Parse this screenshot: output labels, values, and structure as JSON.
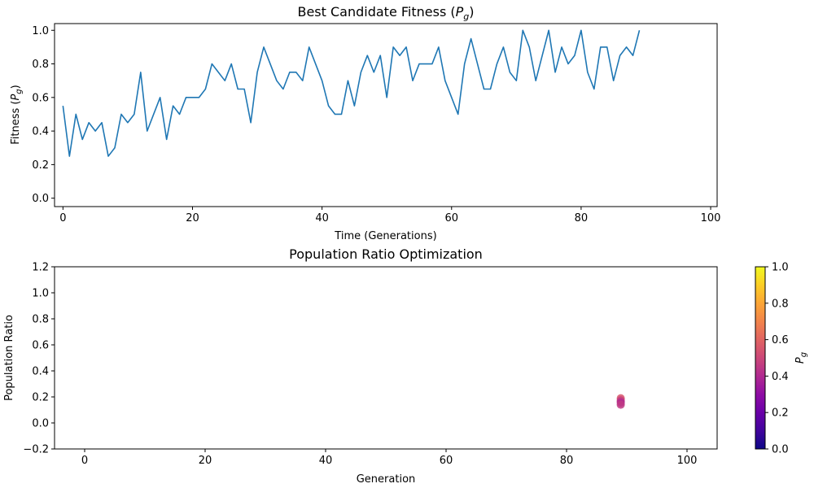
{
  "chart_data": [
    {
      "type": "line",
      "title": "Best Candidate Fitness (P_g)",
      "title_prefix": "Best Candidate Fitness (",
      "title_var": "P",
      "title_sub": "g",
      "title_suffix": ")",
      "xlabel": "Time (Generations)",
      "ylabel": "Fitness (P_g)",
      "ylabel_prefix": "Fitness (",
      "ylabel_var": "P",
      "ylabel_sub": "g",
      "ylabel_suffix": ")",
      "xlim": [
        -1.3,
        101
      ],
      "ylim": [
        -0.05,
        1.04
      ],
      "xticks": [
        0,
        20,
        40,
        60,
        80,
        100
      ],
      "yticks": [
        0.0,
        0.2,
        0.4,
        0.6,
        0.8,
        1.0
      ],
      "xtick_labels": [
        "0",
        "20",
        "40",
        "60",
        "80",
        "100"
      ],
      "ytick_labels": [
        "0.0",
        "0.2",
        "0.4",
        "0.6",
        "0.8",
        "1.0"
      ],
      "line_color": "#1f77b4",
      "grid": false,
      "series": [
        {
          "x": [
            0,
            1,
            2,
            3,
            4,
            5,
            6,
            7,
            8,
            9,
            10,
            11,
            12,
            13,
            14,
            15,
            16,
            17,
            18,
            19,
            20,
            21,
            22,
            23,
            24,
            25,
            26,
            27,
            28,
            29,
            30,
            31,
            32,
            33,
            34,
            35,
            36,
            37,
            38,
            39,
            40,
            41,
            42,
            43,
            44,
            45,
            46,
            47,
            48,
            49,
            50,
            51,
            52,
            53,
            54,
            55,
            56,
            57,
            58,
            59,
            60,
            61,
            62,
            63,
            64,
            65,
            66,
            67,
            68,
            69,
            70,
            71,
            72,
            73,
            74,
            75,
            76,
            77,
            78,
            79,
            80,
            81,
            82,
            83,
            84,
            85,
            86,
            87,
            88,
            89
          ],
          "values": [
            0.55,
            0.25,
            0.5,
            0.35,
            0.45,
            0.4,
            0.45,
            0.25,
            0.3,
            0.5,
            0.45,
            0.5,
            0.75,
            0.4,
            0.5,
            0.6,
            0.35,
            0.55,
            0.5,
            0.6,
            0.6,
            0.6,
            0.65,
            0.8,
            0.75,
            0.7,
            0.8,
            0.65,
            0.65,
            0.45,
            0.75,
            0.9,
            0.8,
            0.7,
            0.65,
            0.75,
            0.75,
            0.7,
            0.9,
            0.8,
            0.7,
            0.55,
            0.5,
            0.5,
            0.7,
            0.55,
            0.75,
            0.85,
            0.75,
            0.85,
            0.6,
            0.9,
            0.85,
            0.9,
            0.7,
            0.8,
            0.8,
            0.8,
            0.9,
            0.7,
            0.6,
            0.5,
            0.8,
            0.95,
            0.8,
            0.65,
            0.65,
            0.8,
            0.9,
            0.75,
            0.7,
            1.0,
            0.9,
            0.7,
            0.85,
            1.0,
            0.75,
            0.9,
            0.8,
            0.85,
            1.0,
            0.75,
            0.65,
            0.9,
            0.9,
            0.7,
            0.85,
            0.9,
            0.85,
            1.0
          ]
        }
      ]
    },
    {
      "type": "scatter",
      "title": "Population Ratio Optimization",
      "xlabel": "Generation",
      "ylabel": "Population Ratio",
      "xlim": [
        -5,
        105
      ],
      "ylim": [
        -0.2,
        1.2
      ],
      "xticks": [
        0,
        20,
        40,
        60,
        80,
        100
      ],
      "yticks": [
        -0.2,
        0.0,
        0.2,
        0.4,
        0.6,
        0.8,
        1.0,
        1.2
      ],
      "xtick_labels": [
        "0",
        "20",
        "40",
        "60",
        "80",
        "100"
      ],
      "ytick_labels": [
        "−0.2",
        "0.0",
        "0.2",
        "0.4",
        "0.6",
        "0.8",
        "1.0",
        "1.2"
      ],
      "grid": false,
      "colormap": "plasma",
      "points": [
        {
          "x": 89,
          "y": 0.19,
          "c": 0.55
        },
        {
          "x": 89,
          "y": 0.175,
          "c": 0.5
        },
        {
          "x": 89,
          "y": 0.165,
          "c": 0.45
        },
        {
          "x": 89,
          "y": 0.155,
          "c": 0.4
        },
        {
          "x": 89,
          "y": 0.14,
          "c": 0.45
        }
      ],
      "colorbar": {
        "label": "P_g",
        "label_var": "P",
        "label_sub": "g",
        "range": [
          0.0,
          1.0
        ],
        "ticks": [
          0.0,
          0.2,
          0.4,
          0.6,
          0.8,
          1.0
        ],
        "tick_labels": [
          "0.0",
          "0.2",
          "0.4",
          "0.6",
          "0.8",
          "1.0"
        ],
        "colors": [
          "#0d0887",
          "#41049d",
          "#6a00a8",
          "#8f0da4",
          "#b12a90",
          "#cc4778",
          "#e16462",
          "#f2844b",
          "#fca636",
          "#fcce25",
          "#f0f921"
        ]
      }
    }
  ]
}
